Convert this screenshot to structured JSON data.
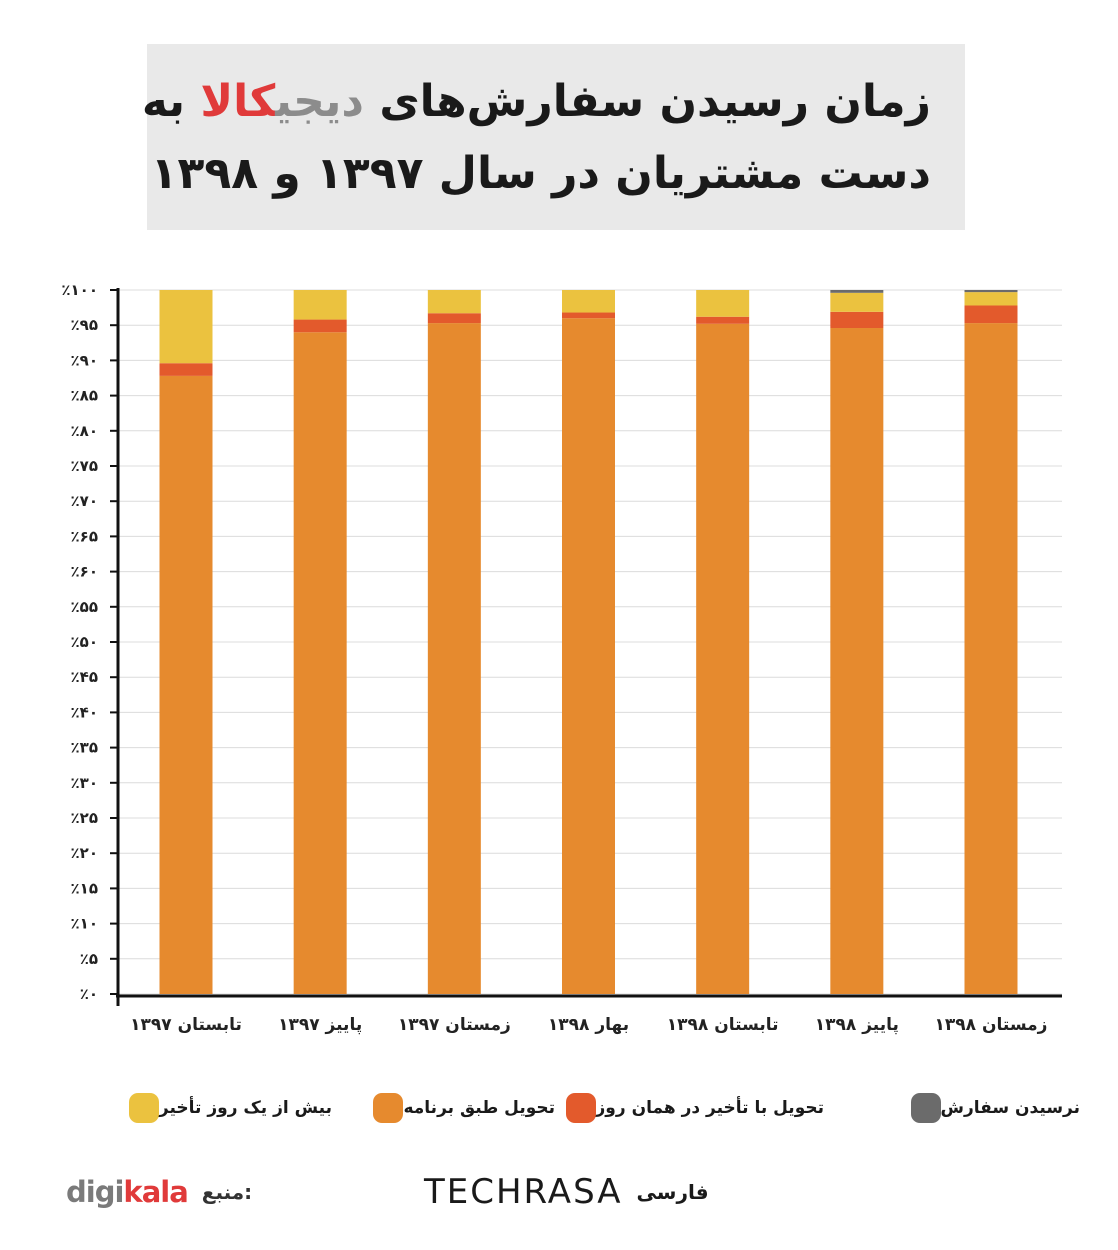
{
  "title": {
    "line1_part_a": "زمان رسیدن سفارش‌های ",
    "line1_part_b": "دیجی",
    "line1_part_c": "کالا",
    "line1_part_d": " به",
    "line2": "دست مشتریان در سال ۱۳۹۷ و ۱۳۹۸"
  },
  "colors": {
    "on_schedule": "#e68a2e",
    "same_day_delay": "#e35a2c",
    "over_one_day_delay": "#ebc23f",
    "not_received": "#6b6b6b"
  },
  "chart_data": {
    "type": "bar",
    "stacked": true,
    "categories": [
      "تابستان ۱۳۹۷",
      "پاییز ۱۳۹۷",
      "زمستان ۱۳۹۷",
      "بهار ۱۳۹۸",
      "تابستان ۱۳۹۸",
      "پاییز ۱۳۹۸",
      "زمستان ۱۳۹۸"
    ],
    "series": [
      {
        "name": "تحویل طبق برنامه",
        "color": "#e68a2e",
        "values": [
          87.8,
          94.0,
          95.3,
          96.0,
          95.2,
          94.6,
          95.3
        ]
      },
      {
        "name": "تحویل با تأخیر در همان روز",
        "color": "#e35a2c",
        "values": [
          1.8,
          1.8,
          1.4,
          0.8,
          1.0,
          2.3,
          2.5
        ]
      },
      {
        "name": "بیش از یک روز تأخیر",
        "color": "#ebc23f",
        "values": [
          10.4,
          4.2,
          3.3,
          3.2,
          3.8,
          2.7,
          1.9
        ]
      },
      {
        "name": "نرسیدن سفارش",
        "color": "#6b6b6b",
        "values": [
          0.0,
          0.0,
          0.0,
          0.0,
          0.0,
          0.4,
          0.3
        ]
      }
    ],
    "y_ticks": [
      "٪۰",
      "٪۵",
      "٪۱۰",
      "٪۱۵",
      "٪۲۰",
      "٪۲۵",
      "٪۳۰",
      "٪۳۵",
      "٪۴۰",
      "٪۴۵",
      "٪۵۰",
      "٪۵۵",
      "٪۶۰",
      "٪۶۵",
      "٪۷۰",
      "٪۷۵",
      "٪۸۰",
      "٪۸۵",
      "٪۹۰",
      "٪۹۵",
      "٪۱۰۰"
    ],
    "ylim": [
      0,
      100
    ],
    "grid": true,
    "legend_position": "bottom"
  },
  "legend": {
    "item_not_received": "نرسیدن سفارش",
    "item_same_day_delay": "تحویل با تأخیر در همان روز",
    "item_on_schedule": "تحویل طبق برنامه",
    "item_over_one_day": "بیش از یک روز تأخیر"
  },
  "footer": {
    "source_label": "منبع:",
    "source_brand_a": "digi",
    "source_brand_b": "kala",
    "techrasa_word": "TECHRASA",
    "techrasa_farsi": "فارسی"
  }
}
